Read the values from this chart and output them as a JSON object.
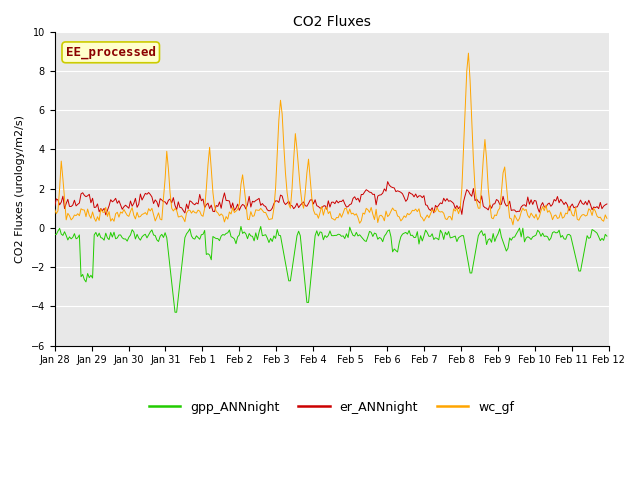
{
  "title": "CO2 Fluxes",
  "ylabel": "CO2 Fluxes (urology/m2/s)",
  "ylim": [
    -6,
    10
  ],
  "yticks": [
    -6,
    -4,
    -2,
    0,
    2,
    4,
    6,
    8,
    10
  ],
  "annotation_text": "EE_processed",
  "annotation_color": "#8B0000",
  "annotation_bg": "#FFFFCC",
  "annotation_border": "#CCCC00",
  "line_colors": {
    "gpp": "#22CC00",
    "er": "#CC0000",
    "wc": "#FFA500"
  },
  "legend_labels": [
    "gpp_ANNnight",
    "er_ANNnight",
    "wc_gf"
  ],
  "legend_colors": [
    "#22CC00",
    "#CC0000",
    "#FFA500"
  ],
  "bg_color": "#E8E8E8",
  "title_fontsize": 10,
  "axis_fontsize": 8,
  "tick_fontsize": 7,
  "legend_fontsize": 9,
  "annotation_fontsize": 9,
  "n_points": 336,
  "pts_per_day": 22.4,
  "day_labels": [
    "Jan 28",
    "Jan 29",
    "Jan 30",
    "Jan 31",
    "Feb 1",
    "Feb 2",
    "Feb 3",
    "Feb 4",
    "Feb 5",
    "Feb 6",
    "Feb 7",
    "Feb 8",
    "Feb 9",
    "Feb 10",
    "Feb 11",
    "Feb 12"
  ]
}
